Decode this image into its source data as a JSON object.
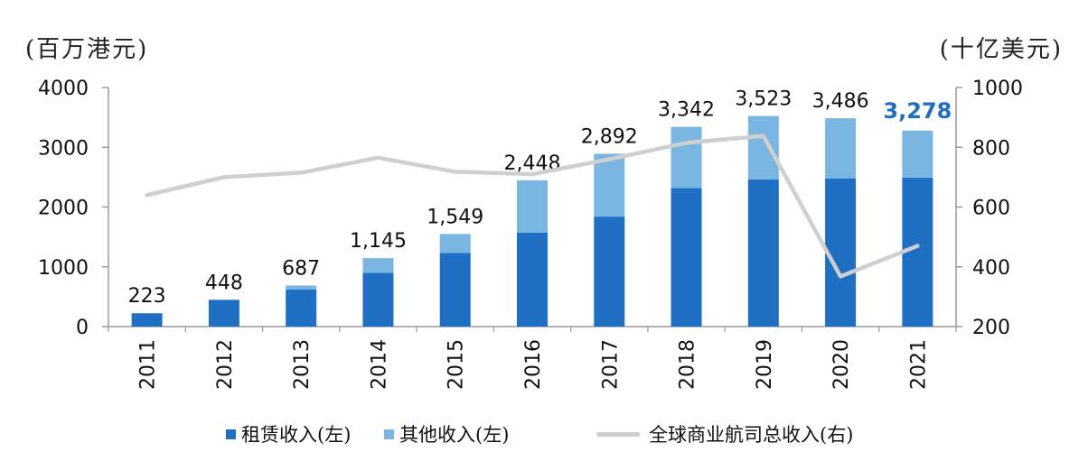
{
  "units": {
    "left": "(百万港元)",
    "right": "(十亿美元)"
  },
  "chart_data": {
    "type": "bar",
    "categories": [
      "2011",
      "2012",
      "2013",
      "2014",
      "2015",
      "2016",
      "2017",
      "2018",
      "2019",
      "2020",
      "2021"
    ],
    "series": [
      {
        "name": "租赁收入(左)",
        "color": "#1f6fc5",
        "values": [
          223,
          448,
          620,
          900,
          1230,
          1570,
          1840,
          2320,
          2460,
          2480,
          2490
        ]
      },
      {
        "name": "其他收入(左)",
        "color": "#7ab6e2",
        "values": [
          0,
          0,
          67,
          245,
          319,
          878,
          1052,
          1022,
          1063,
          1006,
          788
        ]
      },
      {
        "name": "全球商业航司总收入(右)",
        "type": "line",
        "axis": "right",
        "color": "#cfcfcf",
        "values": [
          640,
          700,
          715,
          765,
          718,
          710,
          760,
          815,
          838,
          368,
          470
        ]
      }
    ],
    "totals": [
      "223",
      "448",
      "687",
      "1,145",
      "1,549",
      "2,448",
      "2,892",
      "3,342",
      "3,523",
      "3,486",
      "3,278"
    ],
    "highlight_index": 10,
    "y_left": {
      "min": 0,
      "max": 4000,
      "ticks": [
        "0",
        "1000",
        "2000",
        "3000",
        "4000"
      ]
    },
    "y_right": {
      "min": 200,
      "max": 1000,
      "ticks": [
        "200",
        "400",
        "600",
        "800",
        "1000"
      ]
    },
    "grid": false,
    "legend_position": "bottom"
  },
  "legend": {
    "lease": "租赁收入(左)",
    "other": "其他收入(左)",
    "airline": "全球商业航司总收入(右)"
  }
}
